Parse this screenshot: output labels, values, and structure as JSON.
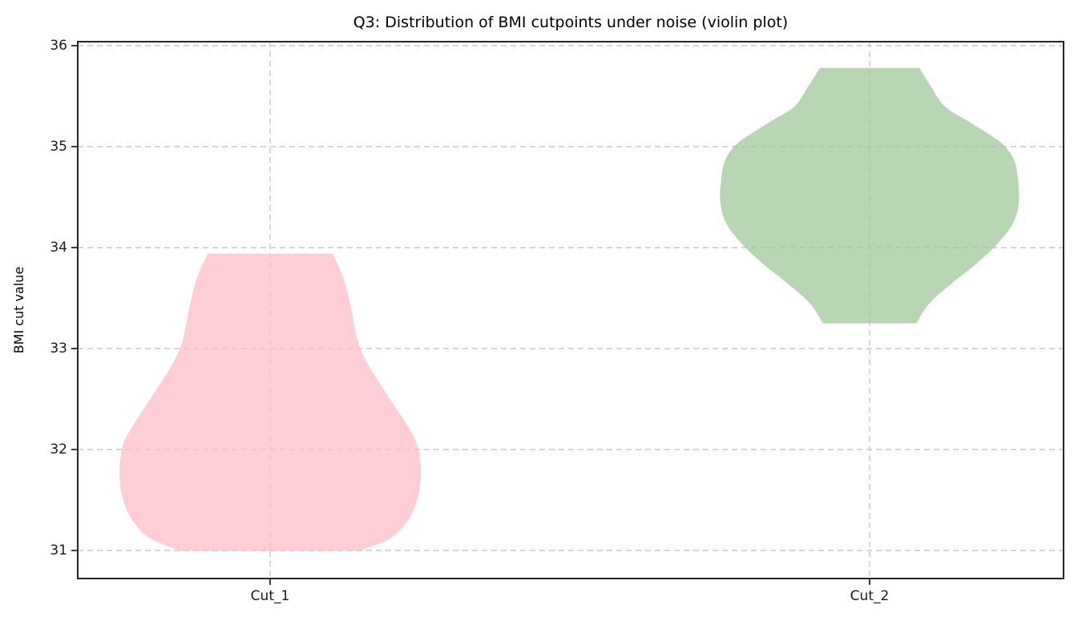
{
  "figure": {
    "background": "#ffffff",
    "spine_color": "#262626",
    "grid_color": "#c8c8c8",
    "tick_label_color": "#1a1a1a"
  },
  "chart_data": {
    "type": "violin",
    "title": "Q3: Distribution of BMI cutpoints under noise (violin plot)",
    "ylabel": "BMI cut value",
    "xlabel": "",
    "categories": [
      "Cut_1",
      "Cut_2"
    ],
    "yticks": [
      36,
      35,
      34,
      33,
      32,
      31
    ],
    "ylim": [
      30.72,
      36.04
    ],
    "grid": {
      "visible": true,
      "style": "dashed",
      "axes": "both"
    },
    "legend": "none",
    "series": [
      {
        "name": "Cut_1",
        "fill_base": "#ffbcc8",
        "fill_opacity": 0.75,
        "observed_fill": "#ffcdd6",
        "min": 31.0,
        "max": 33.94,
        "mode": 31.7,
        "max_halfwidth": 0.251,
        "profile": [
          [
            33.94,
            0.104
          ],
          [
            33.7,
            0.122
          ],
          [
            33.4,
            0.135
          ],
          [
            33.1,
            0.145
          ],
          [
            32.9,
            0.158
          ],
          [
            32.7,
            0.178
          ],
          [
            32.5,
            0.2
          ],
          [
            32.3,
            0.222
          ],
          [
            32.1,
            0.242
          ],
          [
            31.9,
            0.25
          ],
          [
            31.7,
            0.251
          ],
          [
            31.5,
            0.245
          ],
          [
            31.3,
            0.23
          ],
          [
            31.12,
            0.2
          ],
          [
            31.0,
            0.15
          ]
        ]
      },
      {
        "name": "Cut_2",
        "fill_base": "#a2c89b",
        "fill_opacity": 0.75,
        "observed_fill": "#b9d6b4",
        "min": 33.25,
        "max": 35.78,
        "mode": 34.45,
        "max_halfwidth": 0.249,
        "profile": [
          [
            35.78,
            0.083
          ],
          [
            35.6,
            0.102
          ],
          [
            35.4,
            0.125
          ],
          [
            35.25,
            0.165
          ],
          [
            35.1,
            0.205
          ],
          [
            35.0,
            0.226
          ],
          [
            34.85,
            0.242
          ],
          [
            34.65,
            0.248
          ],
          [
            34.45,
            0.249
          ],
          [
            34.25,
            0.24
          ],
          [
            34.05,
            0.215
          ],
          [
            33.85,
            0.18
          ],
          [
            33.65,
            0.138
          ],
          [
            33.45,
            0.1
          ],
          [
            33.25,
            0.078
          ]
        ]
      }
    ]
  }
}
